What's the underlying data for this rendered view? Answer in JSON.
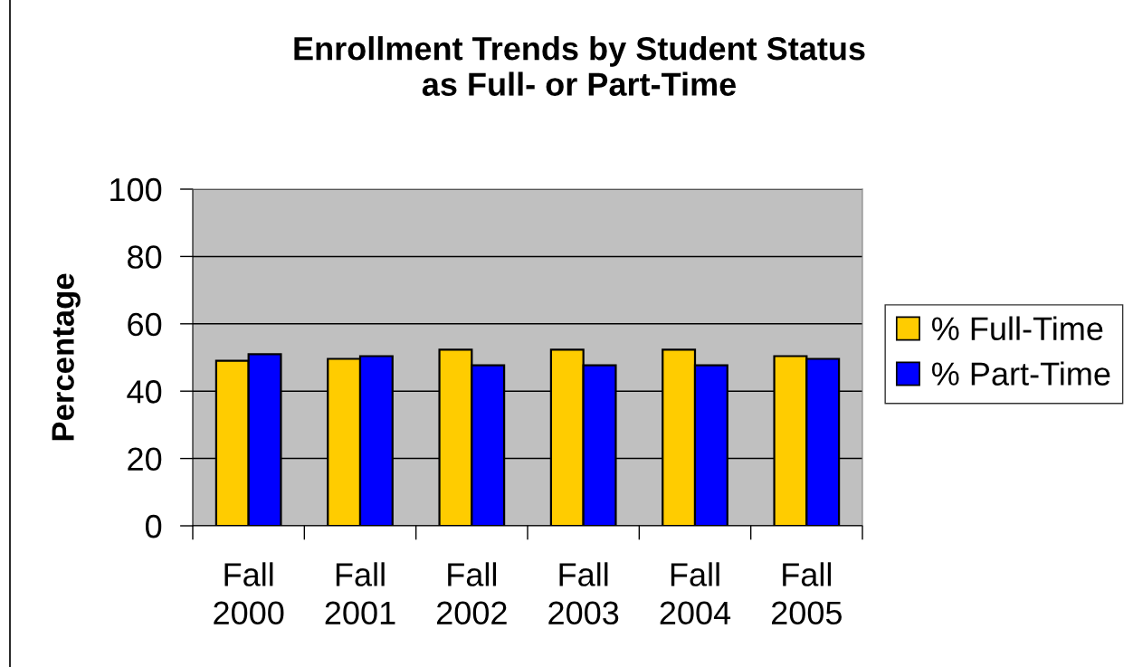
{
  "chart_data": {
    "type": "bar",
    "title": "Enrollment Trends by Student Status\nas Full- or Part-Time",
    "ylabel": "Percentage",
    "categories": [
      "Fall\n2000",
      "Fall\n2001",
      "Fall\n2002",
      "Fall\n2003",
      "Fall\n2004",
      "Fall\n2005"
    ],
    "series": [
      {
        "name": "% Full-Time",
        "color": "#ffcc00",
        "values": [
          49,
          49.6,
          52.3,
          52.3,
          52.3,
          50.4
        ]
      },
      {
        "name": "% Part-Time",
        "color": "#0000ff",
        "values": [
          51,
          50.4,
          47.7,
          47.7,
          47.7,
          49.6
        ]
      }
    ],
    "ylim": [
      0,
      100
    ],
    "yticks": [
      0,
      20,
      40,
      60,
      80,
      100
    ],
    "grid": "y",
    "legend": "right"
  }
}
